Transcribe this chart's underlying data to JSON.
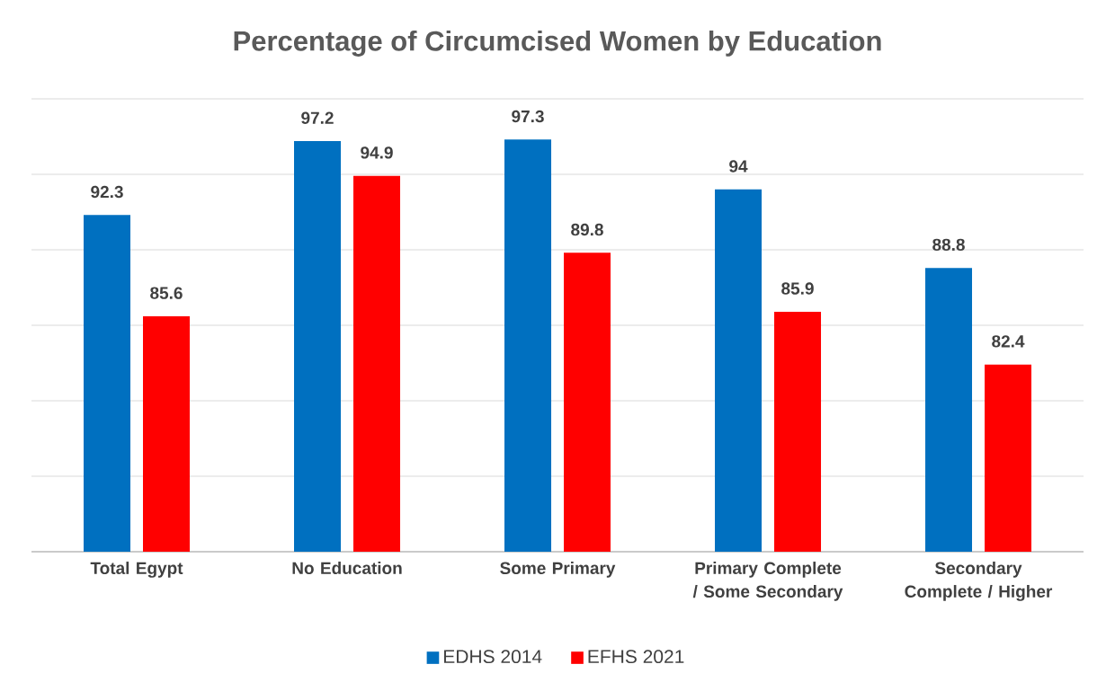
{
  "chart_data": {
    "type": "bar",
    "title": "Percentage of Circumcised Women by Education",
    "categories": [
      "Total Egypt",
      "No Education",
      "Some Primary",
      "Primary Complete / Some Secondary",
      "Secondary Complete / Higher"
    ],
    "series": [
      {
        "name": "EDHS 2014",
        "color": "#0070c0",
        "values": [
          92.3,
          97.2,
          97.3,
          94,
          88.8
        ]
      },
      {
        "name": "EFHS 2021",
        "color": "#ff0000",
        "values": [
          85.6,
          94.9,
          89.8,
          85.9,
          82.4
        ]
      }
    ],
    "ylim": [
      70,
      100
    ],
    "yticks": [
      {
        "value": 70,
        "label": null
      },
      {
        "value": 75,
        "label": null
      },
      {
        "value": 80,
        "label": null
      },
      {
        "value": 85,
        "label": null
      },
      {
        "value": 90,
        "label": null
      },
      {
        "value": 95,
        "label": null
      },
      {
        "value": 100,
        "label": null
      }
    ],
    "tick_labels": "x",
    "grid": "y",
    "legend": "bottom",
    "data_labels": true
  }
}
